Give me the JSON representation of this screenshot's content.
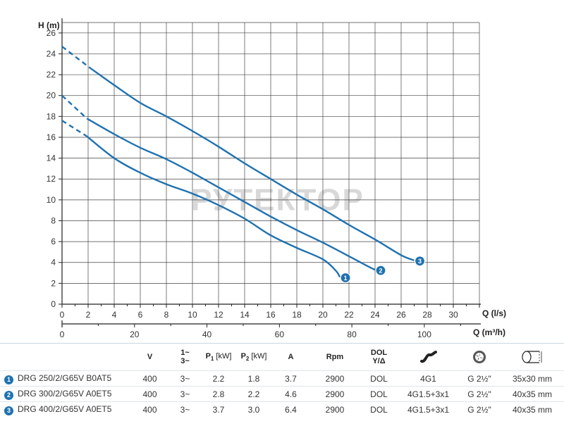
{
  "chart_data": {
    "type": "line",
    "xlabel": "Q (l/s)",
    "x2label": "Q (m³/h)",
    "ylabel": "H (m)",
    "xlim": [
      0,
      32
    ],
    "ylim": [
      0,
      27
    ],
    "x_ticks": [
      0,
      2,
      4,
      6,
      8,
      10,
      12,
      14,
      16,
      18,
      20,
      22,
      24,
      26,
      28,
      30
    ],
    "x2_ticks": [
      0,
      20,
      40,
      60,
      80,
      100
    ],
    "y_ticks": [
      0,
      2,
      4,
      6,
      8,
      10,
      12,
      14,
      16,
      18,
      20,
      22,
      24,
      26
    ],
    "grid": true,
    "series": [
      {
        "name": "1",
        "dashed": [
          [
            0,
            17.6
          ],
          [
            1.9,
            16.1
          ]
        ],
        "points": [
          [
            1.9,
            16.1
          ],
          [
            4,
            14.0
          ],
          [
            6,
            12.6
          ],
          [
            8,
            11.5
          ],
          [
            10,
            10.6
          ],
          [
            12,
            9.5
          ],
          [
            14,
            8.2
          ],
          [
            16,
            6.6
          ],
          [
            18,
            5.4
          ],
          [
            20,
            4.3
          ],
          [
            21,
            3.2
          ],
          [
            21.3,
            2.6
          ]
        ]
      },
      {
        "name": "2",
        "dashed": [
          [
            0,
            20.0
          ],
          [
            1.9,
            17.8
          ]
        ],
        "points": [
          [
            1.9,
            17.8
          ],
          [
            4,
            16.3
          ],
          [
            6,
            15.0
          ],
          [
            8,
            13.9
          ],
          [
            10,
            12.6
          ],
          [
            12,
            11.2
          ],
          [
            14,
            9.8
          ],
          [
            16,
            8.4
          ],
          [
            18,
            7.1
          ],
          [
            20,
            5.9
          ],
          [
            22,
            4.6
          ],
          [
            23.5,
            3.6
          ],
          [
            24,
            3.3
          ]
        ]
      },
      {
        "name": "3",
        "dashed": [
          [
            0,
            24.7
          ],
          [
            2.2,
            22.6
          ]
        ],
        "points": [
          [
            2.2,
            22.6
          ],
          [
            4,
            21.0
          ],
          [
            6,
            19.3
          ],
          [
            8,
            18.0
          ],
          [
            10,
            16.6
          ],
          [
            12,
            15.1
          ],
          [
            14,
            13.5
          ],
          [
            16,
            12.0
          ],
          [
            18,
            10.5
          ],
          [
            20,
            9.1
          ],
          [
            22,
            7.6
          ],
          [
            24,
            6.2
          ],
          [
            26,
            4.7
          ],
          [
            27,
            4.2
          ]
        ]
      }
    ],
    "watermark": "РУТЕКТОР"
  },
  "colors": {
    "curve": "#1f72b0",
    "grid": "#444444",
    "axis": "#222222"
  },
  "table": {
    "headers": {
      "v": "V",
      "phase_top": "1~",
      "phase_bottom": "3~",
      "p1": "P",
      "p1_sub": "1",
      "p1_unit": "[kW]",
      "p2": "P",
      "p2_sub": "2",
      "p2_unit": "[kW]",
      "a": "A",
      "rpm": "Rpm",
      "dol_top": "DOL",
      "dol_bottom": "Y/Δ",
      "icon_cable": "cable-icon",
      "icon_impeller": "impeller-icon",
      "icon_pipe": "pipe-dimension-icon"
    },
    "rows": [
      {
        "num": "1",
        "model": "DRG 250/2/G65V B0AT5",
        "v": "400",
        "phase": "3~",
        "p1": "2.2",
        "p2": "1.8",
        "a": "3.7",
        "rpm": "2900",
        "dol": "DOL",
        "cable": "4G1",
        "outlet": "G 2½\"",
        "size": "35x30 mm"
      },
      {
        "num": "2",
        "model": "DRG 300/2/G65V A0ET5",
        "v": "400",
        "phase": "3~",
        "p1": "2.8",
        "p2": "2.2",
        "a": "4.6",
        "rpm": "2900",
        "dol": "DOL",
        "cable": "4G1.5+3x1",
        "outlet": "G 2½\"",
        "size": "40x35 mm"
      },
      {
        "num": "3",
        "model": "DRG 400/2/G65V A0ET5",
        "v": "400",
        "phase": "3~",
        "p1": "3.7",
        "p2": "3.0",
        "a": "6.4",
        "rpm": "2900",
        "dol": "DOL",
        "cable": "4G1.5+3x1",
        "outlet": "G 2½\"",
        "size": "40x35 mm"
      }
    ]
  }
}
